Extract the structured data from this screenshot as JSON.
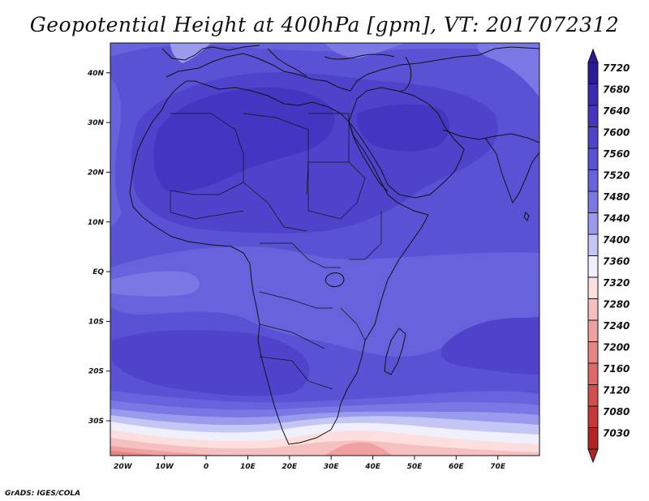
{
  "title": "Geopotential Height at 400hPa [gpm], VT: 2017072312",
  "footer": "GrADS: IGES/COLA",
  "map": {
    "projection": "latlon",
    "lon_range": [
      -23,
      80
    ],
    "lat_range": [
      -37,
      46
    ],
    "lat_ticks": [
      {
        "value": 40,
        "label": "40N"
      },
      {
        "value": 30,
        "label": "30N"
      },
      {
        "value": 20,
        "label": "20N"
      },
      {
        "value": 10,
        "label": "10N"
      },
      {
        "value": 0,
        "label": "EQ"
      },
      {
        "value": -10,
        "label": "10S"
      },
      {
        "value": -20,
        "label": "20S"
      },
      {
        "value": -30,
        "label": "30S"
      }
    ],
    "lon_ticks": [
      {
        "value": -20,
        "label": "20W"
      },
      {
        "value": -10,
        "label": "10W"
      },
      {
        "value": 0,
        "label": "0"
      },
      {
        "value": 10,
        "label": "10E"
      },
      {
        "value": 20,
        "label": "20E"
      },
      {
        "value": 30,
        "label": "30E"
      },
      {
        "value": 40,
        "label": "40E"
      },
      {
        "value": 50,
        "label": "50E"
      },
      {
        "value": 60,
        "label": "60E"
      },
      {
        "value": 70,
        "label": "70E"
      }
    ]
  },
  "colorbar": {
    "levels": [
      "7720",
      "7680",
      "7640",
      "7600",
      "7560",
      "7520",
      "7480",
      "7440",
      "7400",
      "7360",
      "7320",
      "7280",
      "7240",
      "7200",
      "7160",
      "7120",
      "7080",
      "7030"
    ],
    "colors": [
      "#2a1a9c",
      "#3a2ab4",
      "#4536c2",
      "#4f43cc",
      "#5a52d4",
      "#6763dc",
      "#7a78e4",
      "#9a9aee",
      "#c4c6f6",
      "#f0f0fc",
      "#fcdede",
      "#f6c0c0",
      "#efa0a0",
      "#e78484",
      "#df6868",
      "#d54e4e",
      "#c93838",
      "#b42424"
    ]
  },
  "height_bands": [
    {
      "level": 7720,
      "color": "#2a1a9c"
    },
    {
      "level": 7600,
      "color": "#4f43cc"
    },
    {
      "level": 7560,
      "color": "#5a52d4"
    },
    {
      "level": 7520,
      "color": "#6763dc"
    },
    {
      "level": 7480,
      "color": "#7a78e4"
    },
    {
      "level": 7440,
      "color": "#9a9aee"
    },
    {
      "level": 7400,
      "color": "#c4c6f6"
    },
    {
      "level": 7360,
      "color": "#f0f0fc"
    },
    {
      "level": 7320,
      "color": "#fcdede"
    },
    {
      "level": 7280,
      "color": "#f6c0c0"
    },
    {
      "level": 7200,
      "color": "#e78484"
    }
  ]
}
